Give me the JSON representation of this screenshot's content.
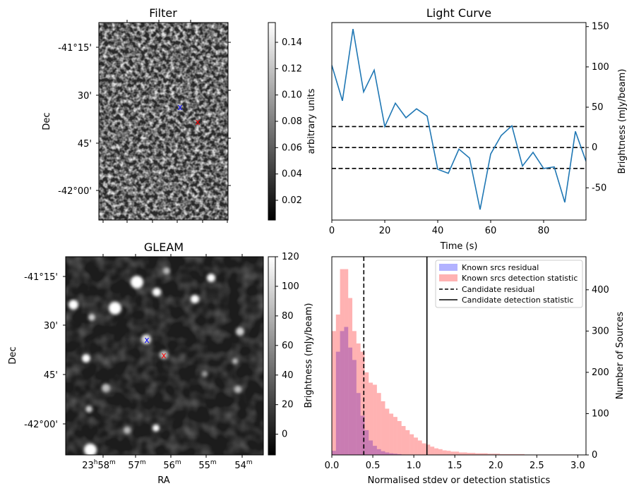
{
  "filter_panel": {
    "title": "Filter",
    "ylabel": "Dec",
    "dec_ticks": [
      "-41°15'",
      "30'",
      "45'",
      "-42°00'"
    ],
    "colorbar": {
      "label": "arbitrary units",
      "ticks": [
        "0.14",
        "0.12",
        "0.10",
        "0.08",
        "0.06",
        "0.04",
        "0.02"
      ],
      "range": [
        0.005,
        0.155
      ]
    }
  },
  "gleam_panel": {
    "title": "GLEAM",
    "xlabel": "RA",
    "ylabel": "Dec",
    "dec_ticks": [
      "-41°15'",
      "30'",
      "45'",
      "-42°00'"
    ],
    "ra_ticks": [
      {
        "main": "23",
        "sup1": "h",
        "mid": "58",
        "sup2": "m"
      },
      {
        "main": "57",
        "sup2": "m"
      },
      {
        "main": "56",
        "sup2": "m"
      },
      {
        "main": "55",
        "sup2": "m"
      },
      {
        "main": "54",
        "sup2": "m"
      }
    ],
    "colorbar": {
      "label": "Brightness (mJy/beam)",
      "ticks": [
        "120",
        "100",
        "80",
        "60",
        "40",
        "20",
        "0"
      ],
      "range": [
        -14,
        120
      ]
    }
  },
  "chart_data": [
    {
      "type": "line",
      "title": "Light Curve",
      "xlabel": "Time (s)",
      "ylabel": "Brightness (mJy/beam)",
      "xlim": [
        0,
        96
      ],
      "ylim": [
        -90,
        155
      ],
      "x_ticks": [
        0,
        20,
        40,
        60,
        80
      ],
      "y_ticks": [
        -50,
        0,
        50,
        100,
        150
      ],
      "y_axis_side": "right",
      "color": "#1f77b4",
      "x": [
        0,
        4,
        8,
        12,
        16,
        20,
        24,
        28,
        32,
        36,
        40,
        44,
        48,
        52,
        56,
        60,
        64,
        68,
        72,
        76,
        80,
        84,
        88,
        92,
        96
      ],
      "values": [
        102,
        58,
        147,
        69,
        96,
        26,
        55,
        37,
        48,
        39,
        -27,
        -32,
        -2,
        -13,
        -77,
        -8,
        15,
        27,
        -23,
        -6,
        -26,
        -24,
        -68,
        20,
        -17
      ],
      "hlines": [
        26,
        0,
        -26
      ],
      "hline_style": "dashed black"
    },
    {
      "type": "histogram",
      "xlabel": "Normalised stdev or detection statistics",
      "ylabel": "Number of Sources",
      "xlim": [
        0,
        3.1
      ],
      "ylim": [
        0,
        480
      ],
      "x_ticks": [
        "0.0",
        "0.5",
        "1.0",
        "1.5",
        "2.0",
        "2.5",
        "3.0"
      ],
      "y_ticks": [
        0,
        100,
        200,
        300,
        400
      ],
      "y_axis_side": "right",
      "legend_position": "top-right",
      "bin_width": 0.05,
      "bin_start": 0,
      "series": [
        {
          "name": "Known srcs residual",
          "color": "#0000ff",
          "alpha": 0.3,
          "counts": [
            10,
            250,
            300,
            310,
            260,
            230,
            150,
            95,
            60,
            35,
            22,
            14,
            9,
            6,
            4,
            3,
            2,
            1
          ]
        },
        {
          "name": "Known srcs detection statistic",
          "color": "#ff0000",
          "alpha": 0.3,
          "counts": [
            300,
            340,
            450,
            450,
            380,
            300,
            270,
            250,
            200,
            175,
            170,
            150,
            130,
            112,
            100,
            92,
            82,
            70,
            60,
            50,
            42,
            35,
            28,
            25,
            20,
            16,
            14,
            11,
            10,
            8,
            8,
            6,
            6,
            5,
            5,
            4,
            4,
            4,
            3,
            3,
            3,
            2,
            2,
            2,
            2,
            2,
            2,
            1,
            1,
            1,
            1,
            1,
            1,
            1,
            1,
            1,
            1,
            1,
            1,
            1
          ]
        }
      ],
      "vlines": [
        {
          "name": "Candidate residual",
          "x": 0.39,
          "style": "dashed"
        },
        {
          "name": "Candidate detection statistic",
          "x": 1.16,
          "style": "solid"
        }
      ]
    }
  ]
}
